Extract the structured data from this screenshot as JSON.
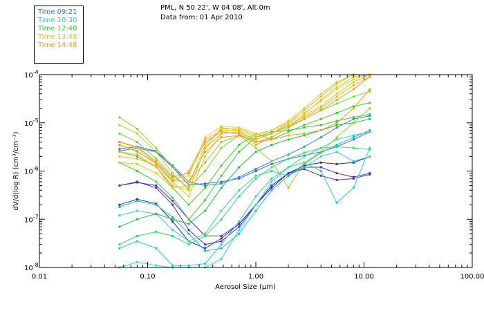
{
  "header": {
    "line1": "PML, N 50 22', W 04 08', Alt 0m",
    "line2": "Data from: 01 Apr 2010"
  },
  "legend": [
    {
      "label": "Time 09:21",
      "color": "#3a6fd8"
    },
    {
      "label": "Time 10:30",
      "color": "#22cccc"
    },
    {
      "label": "Time 12:40",
      "color": "#33cc33"
    },
    {
      "label": "Time 13:48",
      "color": "#bbcc22"
    },
    {
      "label": "Time 14:48",
      "color": "#e8a020"
    }
  ],
  "chart_data": {
    "type": "line",
    "xscale": "log",
    "yscale": "log",
    "xlabel": "Aerosol Size (μm)",
    "ylabel": "dV/d(log R) (cm³/cm⁻³)",
    "xlim": [
      0.01,
      100
    ],
    "ylim": [
      1e-08,
      0.0001
    ],
    "x_ticks": [
      0.01,
      0.1,
      1,
      10,
      100
    ],
    "x_tick_labels": [
      "0.01",
      "0.10",
      "1.00",
      "10.00",
      "100.00"
    ],
    "y_ticks": [
      1e-08,
      1e-07,
      1e-06,
      1e-05,
      0.0001
    ],
    "y_tick_labels": [
      {
        "base": "10",
        "exp": "-8"
      },
      {
        "base": "10",
        "exp": "-7"
      },
      {
        "base": "10",
        "exp": "-6"
      },
      {
        "base": "10",
        "exp": "-5"
      },
      {
        "base": "10",
        "exp": "-4"
      }
    ],
    "x": [
      0.055,
      0.08,
      0.12,
      0.17,
      0.24,
      0.34,
      0.48,
      0.7,
      1.0,
      1.4,
      2.0,
      2.8,
      4.0,
      5.6,
      8.0,
      11.3
    ],
    "series": [
      {
        "color": "#4466dd",
        "values": [
          2.6e-06,
          3e-06,
          2.5e-06,
          1.2e-06,
          5.2e-07,
          5.5e-07,
          6e-07,
          7e-07,
          1e-06,
          1.4e-06,
          1.8e-06,
          2.1e-06,
          2.5e-06,
          3.2e-06,
          4.5e-06,
          6.5e-06
        ]
      },
      {
        "color": "#2288ee",
        "values": [
          2.9e-06,
          3.2e-06,
          2.6e-06,
          1.3e-06,
          6e-07,
          5e-07,
          5.5e-07,
          7.5e-07,
          1.1e-06,
          1.6e-06,
          2.2e-06,
          3.2e-06,
          5e-06,
          8e-06,
          1.2e-05,
          1.4e-05
        ]
      },
      {
        "color": "#5522cc",
        "values": [
          5e-07,
          5.8e-07,
          5e-07,
          2.4e-07,
          1e-07,
          4.5e-08,
          4.5e-08,
          8e-08,
          2e-07,
          5e-07,
          9e-07,
          1.2e-06,
          1.2e-06,
          9e-07,
          7.5e-07,
          9e-07
        ]
      },
      {
        "color": "#3322aa",
        "values": [
          2e-07,
          2.6e-07,
          2.1e-07,
          9e-08,
          3.5e-08,
          2.5e-08,
          4e-08,
          8e-08,
          2e-07,
          4.5e-07,
          9e-07,
          1.3e-06,
          1.5e-06,
          1.4e-06,
          1.5e-06,
          2e-06
        ]
      },
      {
        "color": "#4433bb",
        "values": [
          5e-07,
          6e-07,
          4.5e-07,
          2e-07,
          6e-08,
          3e-08,
          3.5e-08,
          7e-08,
          2e-07,
          5e-07,
          9e-07,
          1.1e-06,
          8e-07,
          6.5e-07,
          7e-07,
          8.5e-07
        ]
      },
      {
        "color": "#22cccc",
        "values": [
          2.5e-08,
          3.5e-08,
          2.5e-08,
          1.1e-08,
          1.1e-08,
          1.2e-08,
          3e-08,
          9e-08,
          3e-07,
          7e-07,
          1.2e-06,
          1.5e-06,
          1e-06,
          2.2e-07,
          4.5e-07,
          3e-06
        ]
      },
      {
        "color": "#33cccc",
        "values": [
          1.2e-07,
          1.5e-07,
          1.3e-07,
          6e-08,
          3.5e-08,
          5e-08,
          1.5e-07,
          4e-07,
          8e-07,
          1e-06,
          8e-07,
          1.2e-06,
          2e-06,
          2.5e-06,
          1.6e-06,
          2e-06
        ]
      },
      {
        "color": "#22dddd",
        "values": [
          1e-08,
          1.3e-08,
          1.1e-08,
          1e-08,
          1e-08,
          1e-08,
          1.5e-08,
          6e-08,
          2e-07,
          6e-07,
          1.2e-06,
          2e-06,
          3e-06,
          4.5e-06,
          5.5e-06,
          6.5e-06
        ]
      },
      {
        "color": "#11bbcc",
        "values": [
          1.8e-07,
          2.4e-07,
          2e-07,
          1.1e-07,
          5e-08,
          2.2e-08,
          2.5e-08,
          5e-08,
          1.5e-07,
          4e-07,
          8e-07,
          1.4e-06,
          2.4e-06,
          3.5e-06,
          5e-06,
          7e-06
        ]
      },
      {
        "color": "#33cc33",
        "values": [
          1.5e-06,
          1e-06,
          6e-07,
          2.8e-07,
          1e-07,
          2.5e-07,
          8e-07,
          2.5e-06,
          5e-06,
          6.5e-06,
          7e-06,
          8e-06,
          9e-06,
          1.1e-05,
          1.3e-05,
          1.5e-05
        ]
      },
      {
        "color": "#22bb44",
        "values": [
          7e-08,
          1e-07,
          1.3e-07,
          1e-07,
          8e-08,
          1.5e-07,
          4.5e-07,
          1.2e-06,
          2.5e-06,
          3.5e-06,
          4.5e-06,
          5.5e-06,
          7e-06,
          9e-06,
          1e-05,
          1.2e-05
        ]
      },
      {
        "color": "#44cc22",
        "values": [
          2.5e-06,
          2e-06,
          1.2e-06,
          4.5e-07,
          2e-07,
          4.5e-07,
          1.3e-06,
          3.5e-06,
          6e-06,
          4.5e-06,
          6.5e-06,
          9e-06,
          1.2e-05,
          1.6e-05,
          2.2e-05,
          2.6e-05
        ]
      },
      {
        "color": "#66dd33",
        "values": [
          6e-06,
          4e-06,
          1.8e-06,
          8e-07,
          4.5e-07,
          1e-06,
          3e-06,
          5.5e-06,
          4.5e-06,
          6e-06,
          8.5e-06,
          1.2e-05,
          1.8e-05,
          2.5e-05,
          3.5e-05,
          4.5e-05
        ]
      },
      {
        "color": "#33dd66",
        "values": [
          3e-08,
          4.5e-08,
          5.5e-08,
          4.5e-08,
          3e-08,
          4.5e-08,
          1e-07,
          3e-07,
          7e-07,
          1.2e-06,
          1.8e-06,
          2.4e-06,
          3e-06,
          3.2e-06,
          3e-06,
          2.8e-06
        ]
      },
      {
        "color": "#99cc22",
        "values": [
          1.3e-05,
          7.5e-06,
          3e-06,
          1.2e-06,
          6e-07,
          1.5e-06,
          4e-06,
          5.5e-06,
          3e-06,
          1.6e-06,
          4.5e-07,
          1.5e-06,
          2.5e-06,
          5e-06,
          1e-05,
          2e-05
        ]
      },
      {
        "color": "#bbcc22",
        "values": [
          9e-06,
          6e-06,
          2.5e-06,
          9e-07,
          4e-07,
          3e-06,
          8e-06,
          7e-06,
          5e-06,
          6e-06,
          9e-06,
          1.3e-05,
          2e-05,
          3.5e-05,
          6e-05,
          9e-05
        ]
      },
      {
        "color": "#cccc22",
        "values": [
          4e-06,
          3e-06,
          1.5e-06,
          6e-07,
          3e-07,
          2e-06,
          6e-06,
          6.5e-06,
          4e-06,
          5e-06,
          8e-06,
          1.5e-05,
          3e-05,
          5.5e-05,
          9e-05,
          0.0001
        ]
      },
      {
        "color": "#ddcc11",
        "values": [
          1.5e-06,
          1.4e-06,
          9e-07,
          4.5e-07,
          5e-07,
          3.5e-06,
          7.5e-06,
          7.5e-06,
          5.5e-06,
          7e-06,
          1.1e-05,
          2e-05,
          4e-05,
          7e-05,
          0.0001,
          0.0001
        ]
      },
      {
        "color": "#eecc22",
        "values": [
          3.5e-06,
          2.5e-06,
          1.5e-06,
          7e-07,
          8e-07,
          5e-06,
          8.5e-06,
          8e-06,
          6e-06,
          7e-06,
          1e-05,
          1.6e-05,
          2.8e-05,
          5e-05,
          8e-05,
          0.0001
        ]
      },
      {
        "color": "#eebb22",
        "values": [
          2e-06,
          1.8e-06,
          1.3e-06,
          6e-07,
          1e-06,
          4.5e-06,
          7e-06,
          7e-06,
          5e-06,
          6e-06,
          9e-06,
          1.4e-05,
          2.2e-05,
          4e-05,
          7e-05,
          0.0001
        ]
      },
      {
        "color": "#e8a020",
        "values": [
          3.5e-06,
          2.6e-06,
          1.4e-06,
          6.5e-07,
          6e-07,
          2.5e-06,
          5e-06,
          5.5e-06,
          4e-06,
          4.5e-06,
          5.5e-06,
          6e-06,
          7e-06,
          1e-05,
          2e-05,
          5e-05
        ]
      },
      {
        "color": "#f09a30",
        "values": [
          4e-06,
          3.2e-06,
          1.6e-06,
          7.5e-07,
          9e-07,
          4e-06,
          6.5e-06,
          6e-06,
          3.5e-06,
          5e-06,
          8e-06,
          1.2e-05,
          1.8e-05,
          3e-05,
          5e-05,
          9e-05
        ]
      },
      {
        "color": "#f0b030",
        "values": [
          2.5e-06,
          2.2e-06,
          1.2e-06,
          5e-07,
          4e-07,
          3e-06,
          6e-06,
          6.5e-06,
          4.5e-06,
          6e-06,
          1e-05,
          1.8e-05,
          3.5e-05,
          6.5e-05,
          0.0001,
          0.0001
        ]
      }
    ]
  }
}
